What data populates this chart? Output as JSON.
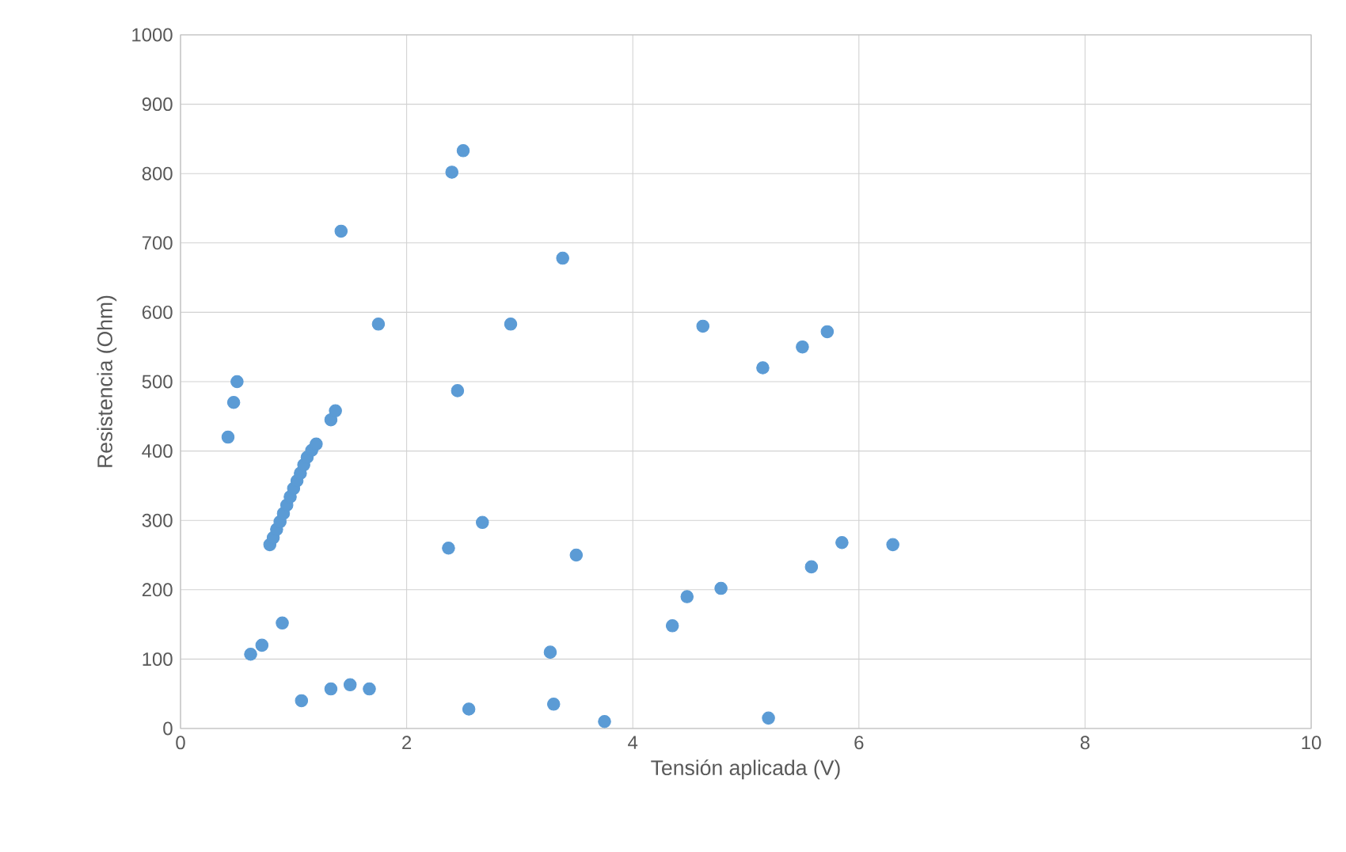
{
  "chart_data": {
    "type": "scatter",
    "xlabel": "Tensión aplicada (V)",
    "ylabel": "Resistencia (Ohm)",
    "xlim": [
      0,
      10
    ],
    "ylim": [
      0,
      1000
    ],
    "xticks": [
      0,
      2,
      4,
      6,
      8,
      10
    ],
    "yticks": [
      0,
      100,
      200,
      300,
      400,
      500,
      600,
      700,
      800,
      900,
      1000
    ],
    "grid": true,
    "marker": "circle",
    "series": [
      {
        "color": "#5b9bd5",
        "x": [
          0.42,
          0.47,
          0.5,
          0.62,
          0.72,
          0.9,
          1.07,
          1.33,
          1.5,
          1.67,
          1.42,
          1.75,
          1.33,
          1.37,
          2.37,
          2.4,
          2.5,
          2.45,
          2.55,
          2.67,
          2.92,
          3.27,
          3.3,
          3.38,
          3.5,
          3.75,
          4.35,
          4.48,
          4.62,
          4.78,
          5.15,
          5.2,
          5.5,
          5.58,
          5.72,
          5.85,
          6.3,
          0.79,
          0.82,
          0.85,
          0.88,
          0.91,
          0.94,
          0.97,
          1.0,
          1.03,
          1.06,
          1.09,
          1.12,
          1.16,
          1.2
        ],
        "values": [
          420,
          470,
          500,
          107,
          120,
          152,
          40,
          57,
          63,
          57,
          717,
          583,
          445,
          458,
          260,
          802,
          833,
          487,
          28,
          297,
          583,
          110,
          35,
          678,
          250,
          10,
          148,
          190,
          580,
          202,
          520,
          15,
          550,
          233,
          572,
          268,
          265,
          265,
          275,
          287,
          298,
          310,
          322,
          334,
          346,
          357,
          368,
          380,
          391,
          401,
          410
        ]
      }
    ]
  }
}
